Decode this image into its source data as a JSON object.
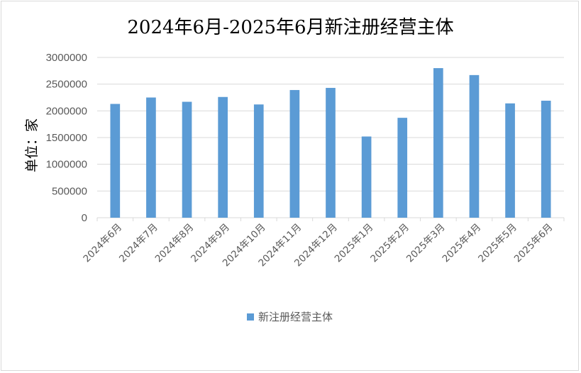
{
  "chart_data": {
    "type": "bar",
    "title": "2024年6月-2025年6月新注册经营主体",
    "ylabel": "单位：家",
    "xlabel": "",
    "categories": [
      "2024年6月",
      "2024年7月",
      "2024年8月",
      "2024年9月",
      "2024年10月",
      "2024年11月",
      "2024年12月",
      "2025年1月",
      "2025年2月",
      "2025年3月",
      "2025年4月",
      "2025年5月",
      "2025年6月"
    ],
    "series": [
      {
        "name": "新注册经营主体",
        "values": [
          2130000,
          2250000,
          2170000,
          2260000,
          2120000,
          2390000,
          2430000,
          1520000,
          1870000,
          2800000,
          2670000,
          2140000,
          2190000
        ]
      }
    ],
    "ylim": [
      0,
      3000000
    ],
    "yticks": [
      "0",
      "500000",
      "1000000",
      "1500000",
      "2000000",
      "2500000",
      "3000000"
    ],
    "grid": true,
    "legend_position": "bottom",
    "color": "#5b9bd5"
  }
}
